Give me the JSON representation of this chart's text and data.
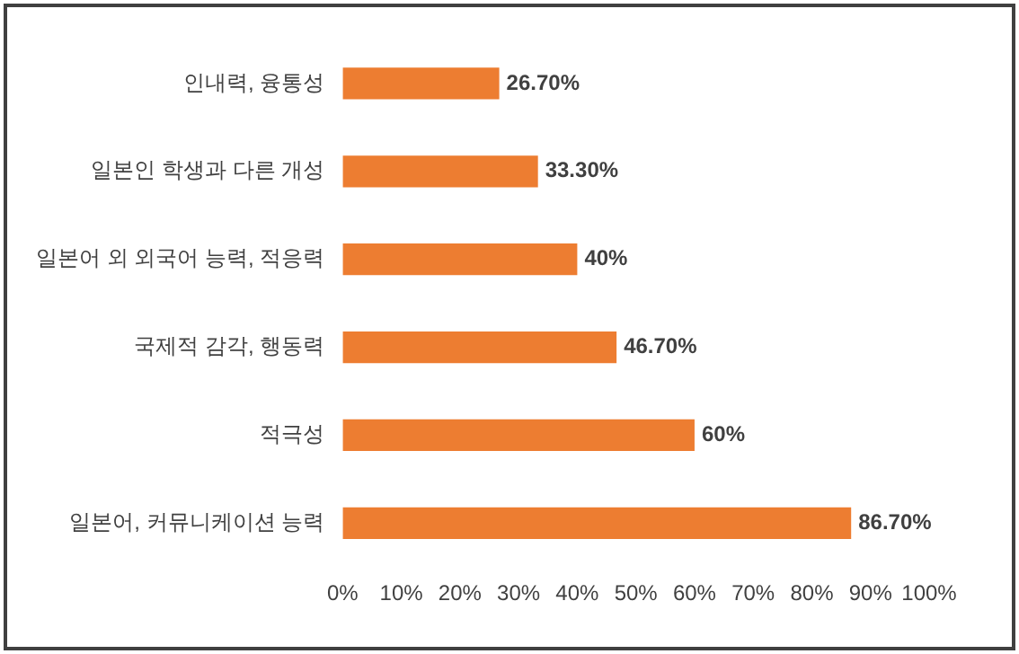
{
  "chart_data": {
    "type": "bar",
    "orientation": "horizontal",
    "categories": [
      "인내력, 융통성",
      "일본인 학생과 다른 개성",
      "일본어 외 외국어 능력, 적응력",
      "국제적 감각, 행동력",
      "적극성",
      "일본어, 커뮤니케이션 능력"
    ],
    "values": [
      26.7,
      33.3,
      40,
      46.7,
      60,
      86.7
    ],
    "value_labels": [
      "26.70%",
      "33.30%",
      "40%",
      "46.70%",
      "60%",
      "86.70%"
    ],
    "color": "#ed7d31",
    "xlim": [
      0,
      100
    ],
    "xticks": [
      {
        "value": 0,
        "label": "0%"
      },
      {
        "value": 10,
        "label": "10%"
      },
      {
        "value": 20,
        "label": "20%"
      },
      {
        "value": 30,
        "label": "30%"
      },
      {
        "value": 40,
        "label": "40%"
      },
      {
        "value": 50,
        "label": "50%"
      },
      {
        "value": 60,
        "label": "60%"
      },
      {
        "value": 70,
        "label": "70%"
      },
      {
        "value": 80,
        "label": "80%"
      },
      {
        "value": 90,
        "label": "90%"
      },
      {
        "value": 100,
        "label": "100%"
      }
    ],
    "grid": false,
    "legend": false
  }
}
